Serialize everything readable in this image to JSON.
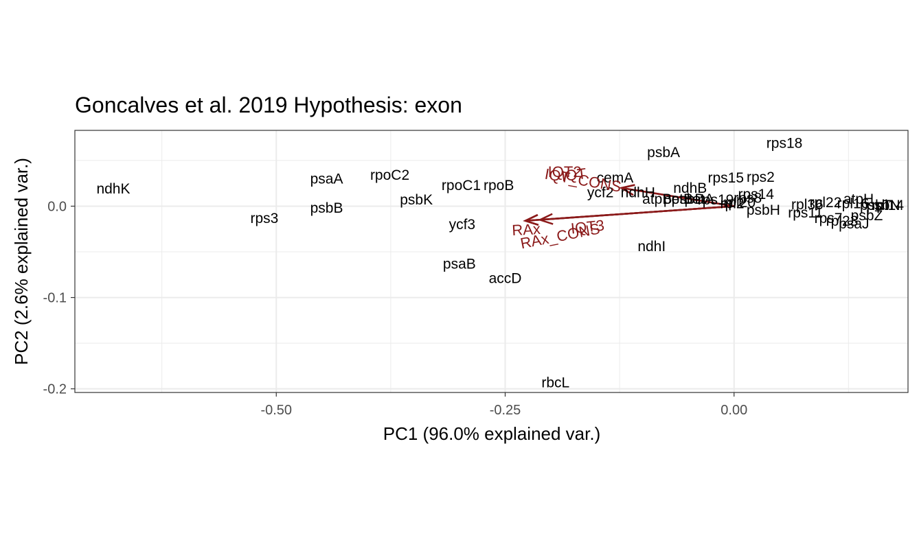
{
  "chart_data": {
    "type": "scatter",
    "title": "Goncalves et al. 2019 Hypothesis:  exon",
    "xlabel": "PC1 (96.0% explained var.)",
    "ylabel": "PC2 (2.6% explained var.)",
    "xlim": [
      -0.72,
      0.19
    ],
    "ylim": [
      -0.204,
      0.083
    ],
    "xticks": [
      -0.5,
      -0.25,
      0.0
    ],
    "xtick_labels": [
      "-0.50",
      "-0.25",
      "0.00"
    ],
    "yticks": [
      -0.2,
      -0.1,
      0.0
    ],
    "ytick_labels": [
      "-0.2",
      "-0.1",
      "0.0"
    ],
    "grid": true,
    "colors": {
      "label": "#000000",
      "arrow": "#8b1a1a",
      "grid": "#ebebeb",
      "border": "#333333"
    },
    "points": [
      {
        "label": "ndhK",
        "x": -0.678,
        "y": 0.019
      },
      {
        "label": "psaA",
        "x": -0.445,
        "y": 0.03
      },
      {
        "label": "rpoC2",
        "x": -0.376,
        "y": 0.034
      },
      {
        "label": "rps3",
        "x": -0.513,
        "y": -0.013
      },
      {
        "label": "psbB",
        "x": -0.445,
        "y": -0.002
      },
      {
        "label": "psbK",
        "x": -0.347,
        "y": 0.007
      },
      {
        "label": "rpoC1",
        "x": -0.298,
        "y": 0.023
      },
      {
        "label": "rpoB",
        "x": -0.257,
        "y": 0.023
      },
      {
        "label": "ycf3",
        "x": -0.297,
        "y": -0.02
      },
      {
        "label": "psaB",
        "x": -0.3,
        "y": -0.063
      },
      {
        "label": "accD",
        "x": -0.25,
        "y": -0.079
      },
      {
        "label": "rbcL",
        "x": -0.195,
        "y": -0.193
      },
      {
        "label": "psbA",
        "x": -0.077,
        "y": 0.059
      },
      {
        "label": "rps18",
        "x": 0.055,
        "y": 0.069
      },
      {
        "label": "cemA",
        "x": -0.13,
        "y": 0.031
      },
      {
        "label": "ycf2",
        "x": -0.146,
        "y": 0.015
      },
      {
        "label": "ndhH",
        "x": -0.105,
        "y": 0.015
      },
      {
        "label": "ndhB",
        "x": -0.048,
        "y": 0.02
      },
      {
        "label": "rps15",
        "x": -0.009,
        "y": 0.031
      },
      {
        "label": "rps2",
        "x": 0.029,
        "y": 0.032
      },
      {
        "label": "rps14",
        "x": 0.024,
        "y": 0.013
      },
      {
        "label": "rps8",
        "x": 0.015,
        "y": 0.009
      },
      {
        "label": "atpB",
        "x": -0.084,
        "y": 0.008
      },
      {
        "label": "petB",
        "x": -0.061,
        "y": 0.008
      },
      {
        "label": "psbD",
        "x": -0.05,
        "y": 0.008
      },
      {
        "label": "petA",
        "x": -0.038,
        "y": 0.008
      },
      {
        "label": "rps19",
        "x": -0.02,
        "y": 0.007
      },
      {
        "label": "rpl20",
        "x": 0.006,
        "y": 0.004
      },
      {
        "label": "rpl2",
        "x": -0.002,
        "y": 0.003
      },
      {
        "label": "psbH",
        "x": 0.032,
        "y": -0.004
      },
      {
        "label": "rps11",
        "x": 0.078,
        "y": -0.007
      },
      {
        "label": "ndhI",
        "x": -0.09,
        "y": -0.044
      },
      {
        "label": "rpl22",
        "x": 0.1,
        "y": 0.004
      },
      {
        "label": "rpl16",
        "x": 0.13,
        "y": 0.003
      },
      {
        "label": "atpH",
        "x": 0.136,
        "y": 0.008
      },
      {
        "label": "rpl36",
        "x": 0.08,
        "y": 0.002
      },
      {
        "label": "rpl14",
        "x": 0.168,
        "y": 0.001
      },
      {
        "label": "rps7",
        "x": 0.103,
        "y": -0.013
      },
      {
        "label": "rpl23",
        "x": 0.118,
        "y": -0.016
      },
      {
        "label": "psaJ",
        "x": 0.131,
        "y": -0.019
      },
      {
        "label": "psbZ",
        "x": 0.145,
        "y": -0.01
      },
      {
        "label": "psbT",
        "x": 0.155,
        "y": 0.001
      },
      {
        "label": "psbN",
        "x": 0.163,
        "y": 0.001
      }
    ],
    "arrows": [
      {
        "label": "IQT",
        "x": -0.123,
        "y": 0.02,
        "label_x": -0.175,
        "label_y": 0.034,
        "angle": -7
      },
      {
        "label": "IQT_CONS",
        "x": -0.123,
        "y": 0.02,
        "label_x": -0.165,
        "label_y": 0.028,
        "angle": 10
      },
      {
        "label": "RAx",
        "x": -0.228,
        "y": -0.016,
        "label_x": -0.227,
        "label_y": -0.026,
        "angle": -3
      },
      {
        "label": "RAx_CONS",
        "x": -0.228,
        "y": -0.016,
        "label_x": -0.19,
        "label_y": -0.033,
        "angle": -11
      },
      {
        "label": "IQT3",
        "x": -0.228,
        "y": -0.016,
        "label_x": -0.16,
        "label_y": -0.023,
        "angle": -6
      },
      {
        "label": "IQT2",
        "x": -0.212,
        "y": -0.015,
        "label_x": -0.185,
        "label_y": 0.037,
        "angle": 0
      }
    ]
  }
}
